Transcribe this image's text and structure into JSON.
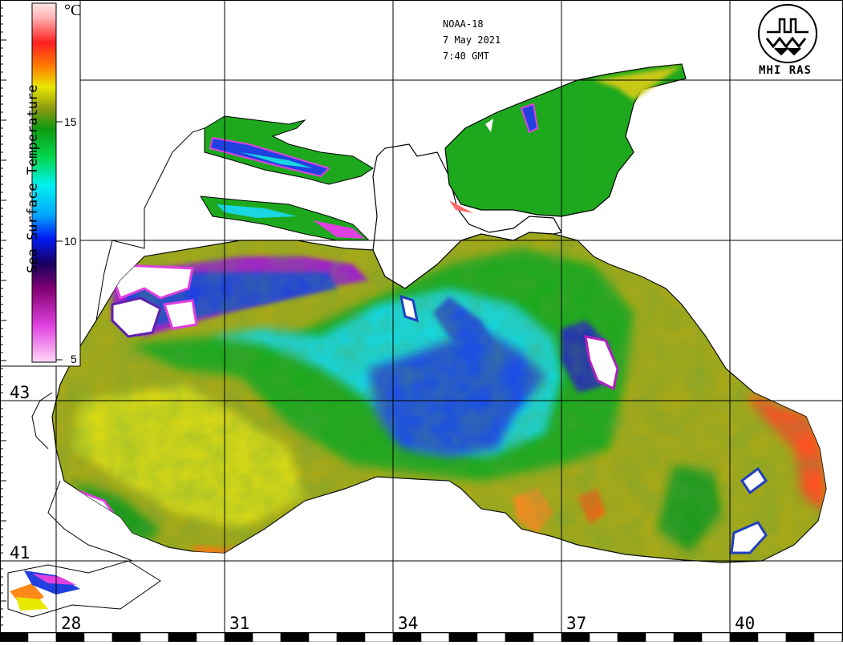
{
  "header": {
    "satellite": "NOAA-18",
    "date": "7 May 2021",
    "time": "7:40 GMT",
    "logo_text": "MHI RAS"
  },
  "colorbar": {
    "title": "Sea Surface Temperature",
    "unit": "°C",
    "ticks": [
      "15",
      "10",
      "5"
    ],
    "stops": [
      {
        "value": 5,
        "color": "#ffd8f8"
      },
      {
        "value": 6.5,
        "color": "#e040e0"
      },
      {
        "value": 8,
        "color": "#800070"
      },
      {
        "value": 9,
        "color": "#180060"
      },
      {
        "value": 10,
        "color": "#0018f0"
      },
      {
        "value": 11,
        "color": "#00a8ff"
      },
      {
        "value": 12.2,
        "color": "#00f0f0"
      },
      {
        "value": 13.3,
        "color": "#00d850"
      },
      {
        "value": 14.5,
        "color": "#109a10"
      },
      {
        "value": 15.3,
        "color": "#8a9810"
      },
      {
        "value": 16.2,
        "color": "#e8e800"
      },
      {
        "value": 17,
        "color": "#ff8000"
      },
      {
        "value": 18,
        "color": "#ff2020"
      },
      {
        "value": 19,
        "color": "#ffb0b0"
      },
      {
        "value": 19.6,
        "color": "#ffe8e8"
      }
    ]
  },
  "grid": {
    "latitude_labels": [
      "43",
      "41"
    ],
    "longitude_labels": [
      "28",
      "31",
      "34",
      "37",
      "40"
    ]
  },
  "colors": {
    "open_sea_warm": "#a8a818",
    "open_sea_green": "#1ea81e",
    "cold_core": "#1e4ee6",
    "coast_hot": "#ff4a1a",
    "cloud": "#ffffff"
  }
}
